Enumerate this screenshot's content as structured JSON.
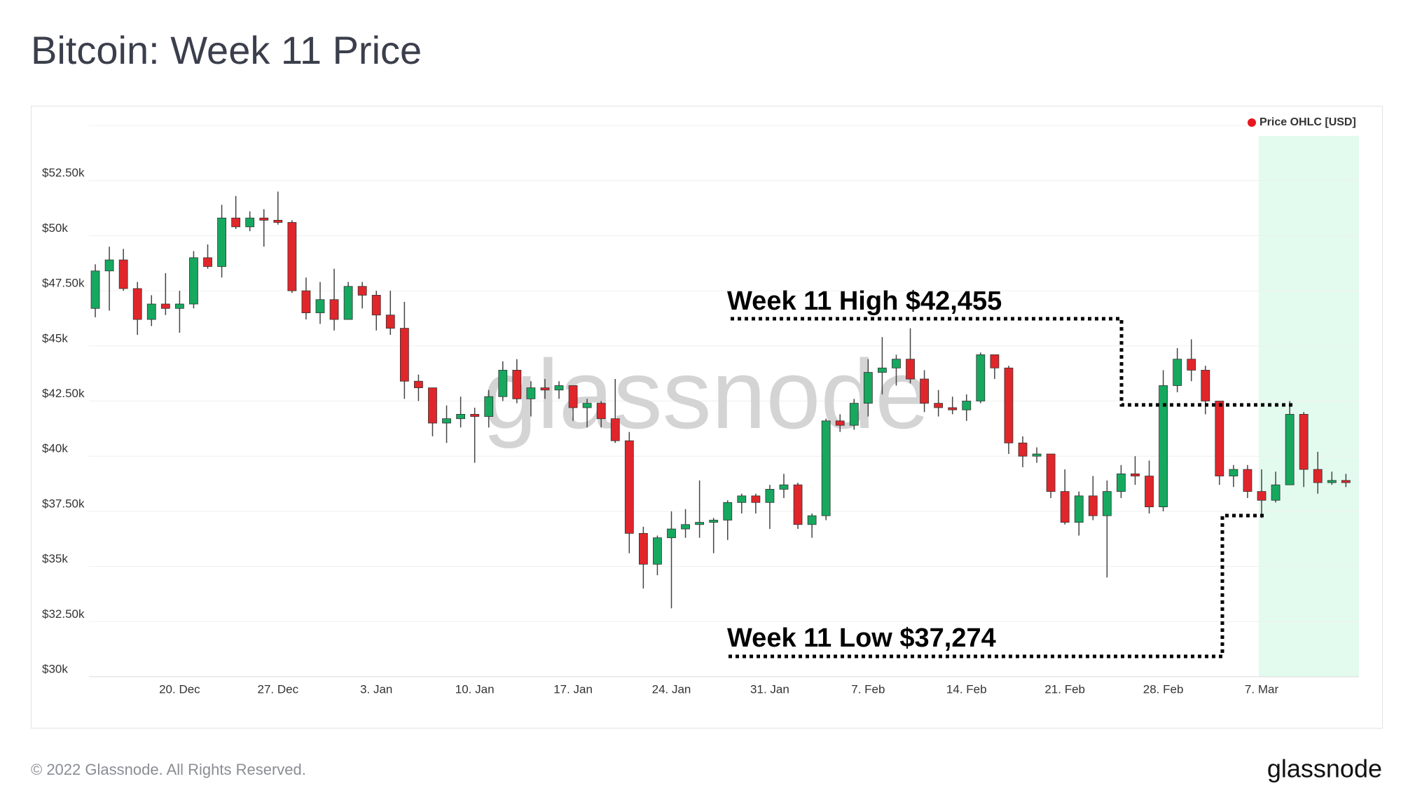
{
  "title": "Bitcoin: Week 11 Price",
  "chart_data": {
    "type": "candlestick",
    "watermark": "glassnode",
    "categories": [
      null,
      null,
      null,
      null,
      null,
      null,
      "20. Dec",
      null,
      null,
      null,
      null,
      null,
      null,
      "27. Dec",
      null,
      null,
      null,
      null,
      null,
      null,
      "3. Jan",
      null,
      null,
      null,
      null,
      null,
      null,
      "10. Jan",
      null,
      null,
      null,
      null,
      null,
      null,
      "17. Jan",
      null,
      null,
      null,
      null,
      null,
      null,
      "24. Jan",
      null,
      null,
      null,
      null,
      null,
      null,
      "31. Jan",
      null,
      null,
      null,
      null,
      null,
      null,
      "7. Feb",
      null,
      null,
      null,
      null,
      null,
      null,
      "14. Feb",
      null,
      null,
      null,
      null,
      null,
      null,
      "21. Feb",
      null,
      null,
      null,
      null,
      null,
      null,
      "28. Feb",
      null,
      null,
      null,
      null,
      null,
      null,
      "7. Mar",
      null,
      null,
      null,
      null,
      null,
      null
    ],
    "series": [
      {
        "name": "Price OHLC [USD]",
        "color": "#e8161e",
        "open": [
          46700,
          48400,
          48900,
          47600,
          46200,
          46900,
          46700,
          46900,
          49000,
          48600,
          50800,
          50400,
          50800,
          50700,
          50600,
          47500,
          46500,
          47100,
          46200,
          47700,
          47300,
          46400,
          45800,
          43400,
          43100,
          41500,
          41700,
          41900,
          41800,
          42700,
          43900,
          42600,
          43100,
          43000,
          43200,
          42200,
          42400,
          41700,
          40700,
          36500,
          35100,
          36300,
          36700,
          36900,
          37000,
          37100,
          37900,
          38200,
          37900,
          38500,
          38700,
          36900,
          37300,
          41600,
          41400,
          42400,
          43800,
          44000,
          44400,
          43500,
          42400,
          42200,
          42100,
          42500,
          44600,
          44000,
          40600,
          40000,
          40100,
          38400,
          37000,
          38200,
          37300,
          38400,
          39200,
          39100,
          37700,
          43200,
          44400,
          43900,
          42500,
          39100,
          39400,
          38400,
          38000,
          38700,
          41900,
          39400,
          38800,
          38900
        ],
        "high": [
          48700,
          49500,
          49400,
          47900,
          47300,
          48300,
          47500,
          49300,
          49600,
          51400,
          51800,
          51100,
          51200,
          52000,
          50700,
          48100,
          47900,
          48500,
          47900,
          47900,
          47500,
          47500,
          47000,
          43700,
          43100,
          42300,
          42700,
          42200,
          43000,
          44300,
          44400,
          43400,
          43500,
          43400,
          43200,
          42600,
          42500,
          43500,
          41100,
          36800,
          36400,
          37500,
          37600,
          38900,
          37200,
          38000,
          38300,
          38300,
          38700,
          39200,
          38800,
          37400,
          41700,
          41900,
          42600,
          44400,
          45400,
          44600,
          45800,
          43900,
          43000,
          42700,
          42800,
          44700,
          44600,
          44100,
          40900,
          40400,
          40100,
          39400,
          38400,
          39100,
          38900,
          39600,
          40000,
          39800,
          43900,
          44900,
          45300,
          44100,
          42500,
          39600,
          39600,
          39400,
          39300,
          42500,
          42000,
          40200,
          39300,
          39200
        ],
        "low": [
          46300,
          46600,
          47500,
          45500,
          45900,
          46400,
          45600,
          46700,
          48500,
          48100,
          50300,
          50200,
          49500,
          50500,
          47400,
          46200,
          46000,
          45700,
          46200,
          46700,
          45700,
          45500,
          42600,
          42500,
          40900,
          40600,
          41300,
          39700,
          41300,
          42500,
          42400,
          41800,
          42600,
          42600,
          41600,
          41300,
          41300,
          40600,
          35600,
          34000,
          34600,
          33100,
          36300,
          36300,
          35600,
          36200,
          37400,
          37400,
          36700,
          38100,
          36700,
          36300,
          37100,
          41100,
          41200,
          41800,
          42800,
          43200,
          43300,
          42000,
          41800,
          41900,
          41600,
          42400,
          43500,
          40100,
          39500,
          39700,
          38100,
          36900,
          36400,
          37100,
          34500,
          38100,
          38700,
          37400,
          37500,
          42900,
          43400,
          41900,
          38700,
          38600,
          38100,
          37200,
          37900,
          38700,
          38600,
          38300,
          38700,
          38600
        ],
        "close": [
          48400,
          48900,
          47600,
          46200,
          46900,
          46700,
          46900,
          49000,
          48600,
          50800,
          50400,
          50800,
          50700,
          50600,
          47500,
          46500,
          47100,
          46200,
          47700,
          47300,
          46400,
          45800,
          43400,
          43100,
          41500,
          41700,
          41900,
          41800,
          42700,
          43900,
          42600,
          43100,
          43000,
          43200,
          42200,
          42400,
          41700,
          40700,
          36500,
          35100,
          36300,
          36700,
          36900,
          37000,
          37100,
          37900,
          38200,
          37900,
          38500,
          38700,
          36900,
          37300,
          41600,
          41400,
          42400,
          43800,
          44000,
          44400,
          43500,
          42400,
          42200,
          42100,
          42500,
          44600,
          44000,
          40600,
          40000,
          40100,
          38400,
          37000,
          38200,
          37300,
          38400,
          39200,
          39100,
          37700,
          43200,
          44400,
          43900,
          42500,
          39100,
          39400,
          38400,
          38000,
          38700,
          41900,
          39400,
          38800,
          38900,
          38800
        ]
      }
    ],
    "up_color": "#16a85f",
    "down_color": "#e0262a",
    "ylim": [
      30000,
      55000
    ],
    "yticks": [
      {
        "value": 30000,
        "label": "$30k"
      },
      {
        "value": 32500,
        "label": "$32.50k"
      },
      {
        "value": 35000,
        "label": "$35k"
      },
      {
        "value": 37500,
        "label": "$37.50k"
      },
      {
        "value": 40000,
        "label": "$40k"
      },
      {
        "value": 42500,
        "label": "$42.50k"
      },
      {
        "value": 45000,
        "label": "$45k"
      },
      {
        "value": 47500,
        "label": "$47.50k"
      },
      {
        "value": 50000,
        "label": "$50k"
      },
      {
        "value": 52500,
        "label": "$52.50k"
      }
    ],
    "grid": true,
    "legend": "top-right",
    "annotations": [
      "Week 11 High $42,455",
      "Week 11 Low $37,274"
    ]
  },
  "footer": {
    "copyright": "© 2022 Glassnode. All Rights Reserved.",
    "logo": "glassnode"
  }
}
